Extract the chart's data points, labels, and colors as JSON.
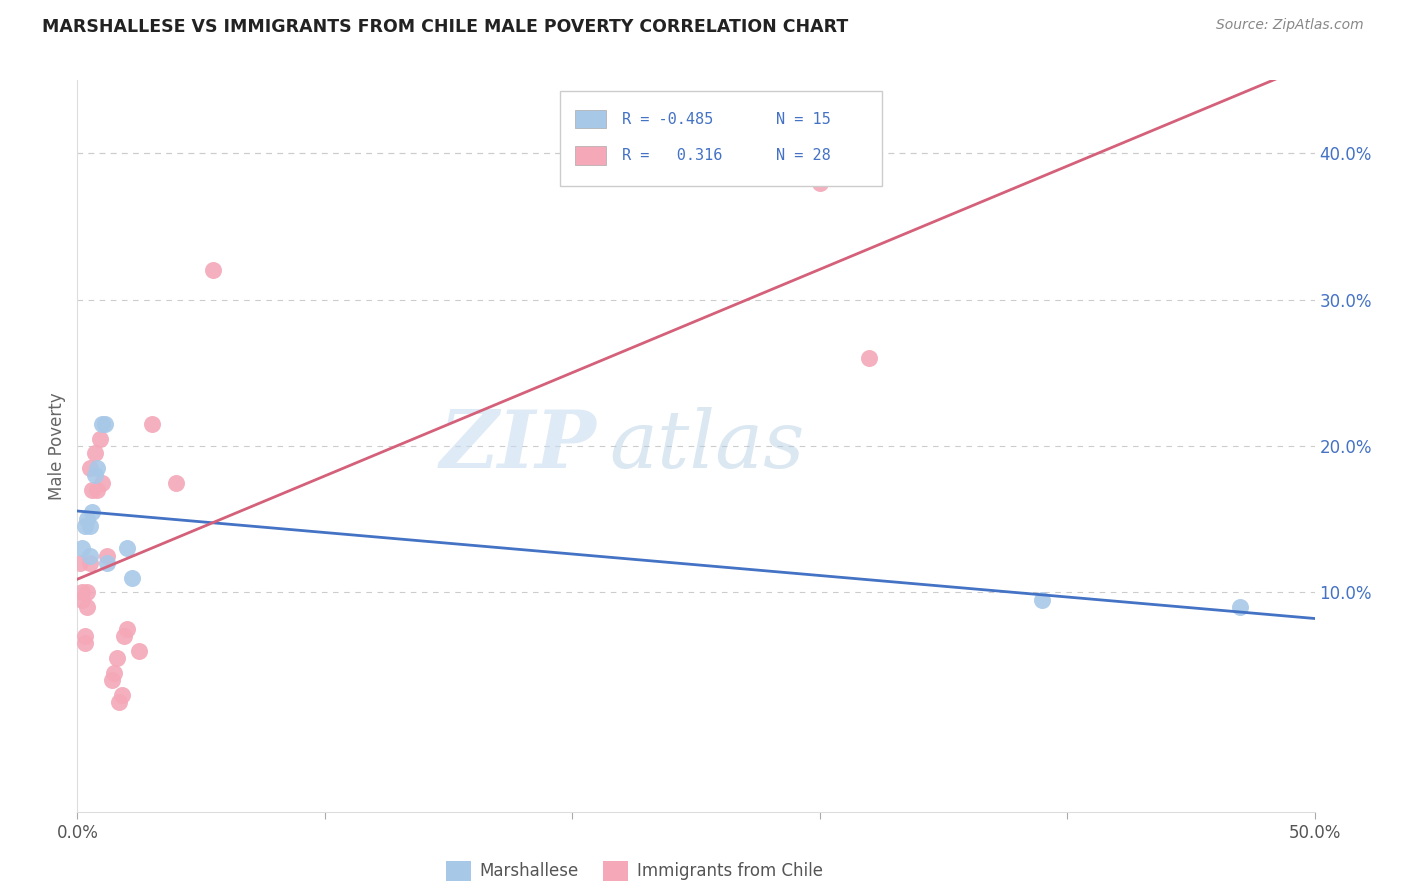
{
  "title": "MARSHALLESE VS IMMIGRANTS FROM CHILE MALE POVERTY CORRELATION CHART",
  "source": "Source: ZipAtlas.com",
  "ylabel": "Male Poverty",
  "xlim": [
    0.0,
    0.5
  ],
  "ylim": [
    -0.05,
    0.45
  ],
  "xticks": [
    0.0,
    0.1,
    0.2,
    0.3,
    0.4,
    0.5
  ],
  "xticklabels": [
    "0.0%",
    "",
    "",
    "",
    "",
    "50.0%"
  ],
  "yticks_right": [
    0.1,
    0.2,
    0.3,
    0.4
  ],
  "ytick_right_labels": [
    "10.0%",
    "20.0%",
    "30.0%",
    "40.0%"
  ],
  "marshallese_color": "#a8c8e8",
  "chile_color": "#f4a8b8",
  "marshallese_line_color": "#4472c4",
  "chile_line_color": "#d4607a",
  "legend_r_marshallese": "-0.485",
  "legend_n_marshallese": "15",
  "legend_r_chile": "0.316",
  "legend_n_chile": "28",
  "watermark_zip": "ZIP",
  "watermark_atlas": "atlas",
  "marshallese_x": [
    0.002,
    0.003,
    0.004,
    0.005,
    0.005,
    0.006,
    0.007,
    0.008,
    0.01,
    0.011,
    0.012,
    0.02,
    0.022,
    0.39,
    0.47
  ],
  "marshallese_y": [
    0.13,
    0.145,
    0.15,
    0.125,
    0.145,
    0.155,
    0.18,
    0.185,
    0.215,
    0.215,
    0.12,
    0.13,
    0.11,
    0.095,
    0.09
  ],
  "chile_x": [
    0.001,
    0.002,
    0.002,
    0.003,
    0.003,
    0.004,
    0.004,
    0.005,
    0.005,
    0.006,
    0.007,
    0.008,
    0.009,
    0.01,
    0.012,
    0.014,
    0.015,
    0.016,
    0.017,
    0.018,
    0.019,
    0.02,
    0.025,
    0.03,
    0.04,
    0.055,
    0.3,
    0.32
  ],
  "chile_y": [
    0.12,
    0.095,
    0.1,
    0.065,
    0.07,
    0.09,
    0.1,
    0.12,
    0.185,
    0.17,
    0.195,
    0.17,
    0.205,
    0.175,
    0.125,
    0.04,
    0.045,
    0.055,
    0.025,
    0.03,
    0.07,
    0.075,
    0.06,
    0.215,
    0.175,
    0.32,
    0.38,
    0.26
  ]
}
